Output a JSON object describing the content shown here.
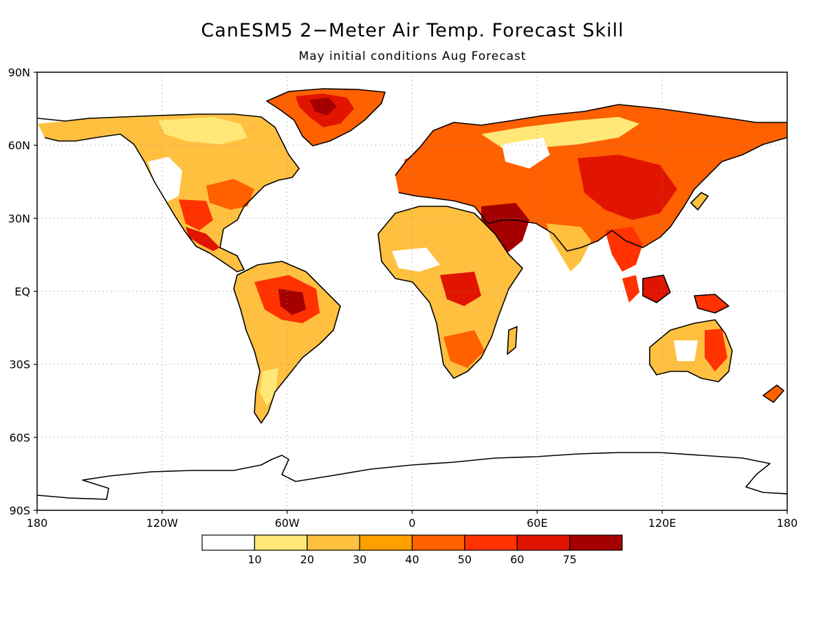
{
  "title": "CanESM5 2−Meter Air Temp. Forecast Skill",
  "subtitle": "May initial conditions  Aug Forecast",
  "map": {
    "projection": "cylindrical-equidistant",
    "lon_range": [
      -180,
      180
    ],
    "lat_range": [
      -90,
      90
    ],
    "lat_ticks": [
      {
        "value": 90,
        "label": "90N"
      },
      {
        "value": 60,
        "label": "60N"
      },
      {
        "value": 30,
        "label": "30N"
      },
      {
        "value": 0,
        "label": "EQ"
      },
      {
        "value": -30,
        "label": "30S"
      },
      {
        "value": -60,
        "label": "60S"
      },
      {
        "value": -90,
        "label": "90S"
      }
    ],
    "lon_ticks": [
      {
        "value": -180,
        "label": "180"
      },
      {
        "value": -120,
        "label": "120W"
      },
      {
        "value": -60,
        "label": "60W"
      },
      {
        "value": 0,
        "label": "0"
      },
      {
        "value": 60,
        "label": "60E"
      },
      {
        "value": 120,
        "label": "120E"
      },
      {
        "value": 180,
        "label": "180"
      }
    ],
    "grid": "dotted"
  },
  "colorbar": {
    "bins": [
      {
        "color": "#ffffff"
      },
      {
        "color": "#ffe878"
      },
      {
        "color": "#ffc040"
      },
      {
        "color": "#ffa000"
      },
      {
        "color": "#ff6000"
      },
      {
        "color": "#ff3200"
      },
      {
        "color": "#e11400"
      },
      {
        "color": "#a50000"
      }
    ],
    "labels": [
      "10",
      "20",
      "30",
      "40",
      "50",
      "60",
      "75"
    ]
  }
}
